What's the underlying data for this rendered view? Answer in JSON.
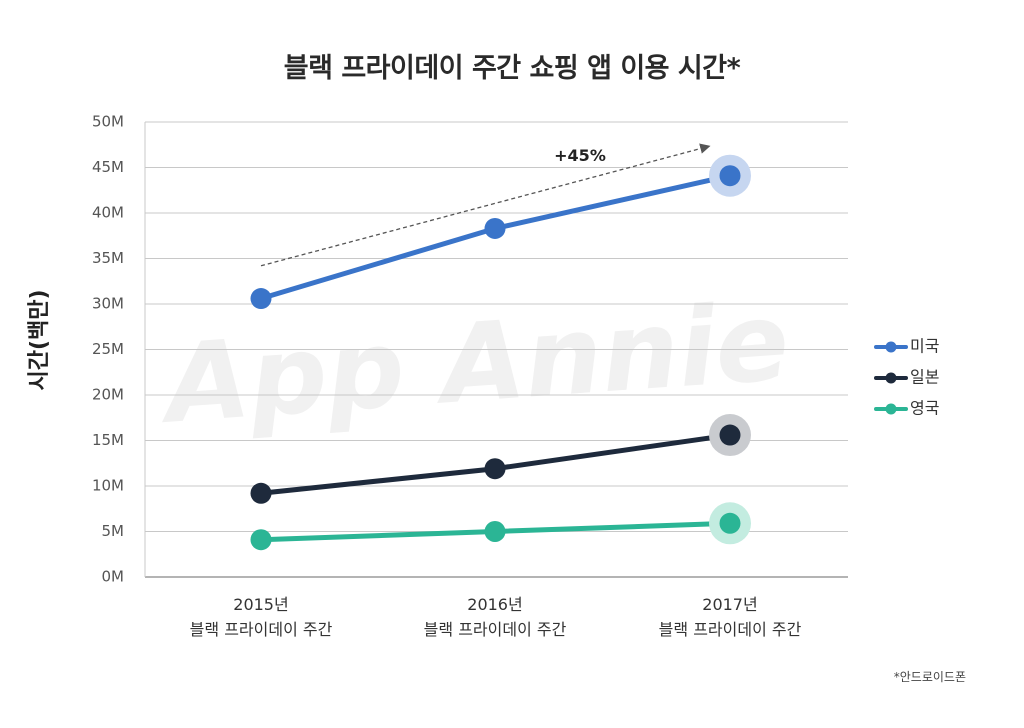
{
  "watermark": "App Annie",
  "footnote": "*안드로이드폰",
  "chart_data": {
    "type": "line",
    "title": "블랙 프라이데이 주간 쇼핑 앱 이용 시간*",
    "ylabel": "시간(백만)",
    "xlabel": "",
    "categories": [
      [
        "2015년",
        "블랙 프라이데이 주간"
      ],
      [
        "2016년",
        "블랙 프라이데이 주간"
      ],
      [
        "2017년",
        "블랙 프라이데이 주간"
      ]
    ],
    "ylim": [
      0,
      50
    ],
    "ytick_values": [
      0,
      5,
      10,
      15,
      20,
      25,
      30,
      35,
      40,
      45,
      50
    ],
    "ytick_labels": [
      "0M",
      "5M",
      "10M",
      "15M",
      "20M",
      "25M",
      "30M",
      "35M",
      "40M",
      "45M",
      "50M"
    ],
    "grid": true,
    "legend_position": "right",
    "series": [
      {
        "name": "미국",
        "values": [
          30.6,
          38.3,
          44.1
        ],
        "color": "#3a74c9",
        "halo": "#c6d6f0"
      },
      {
        "name": "일본",
        "values": [
          9.2,
          11.9,
          15.6
        ],
        "color": "#1e2a3c",
        "halo": "#c9cbcf"
      },
      {
        "name": "영국",
        "values": [
          4.1,
          5.0,
          5.9
        ],
        "color": "#2bb595",
        "halo": "#c3ece0"
      }
    ],
    "annotation": {
      "text": "+45%",
      "from": {
        "category": 0,
        "value": 34.2
      },
      "to": {
        "category": 2,
        "value": 47.3
      }
    }
  }
}
